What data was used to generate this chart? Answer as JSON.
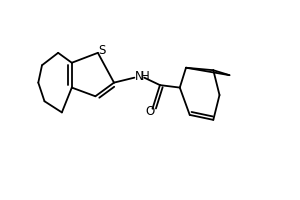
{
  "bg_color": "#ffffff",
  "line_color": "#000000",
  "line_width": 1.3,
  "font_size": 8.5,
  "figsize": [
    3.0,
    2.0
  ],
  "dpi": 100,
  "xlim": [
    0.0,
    1.0
  ],
  "ylim": [
    0.15,
    0.95
  ]
}
